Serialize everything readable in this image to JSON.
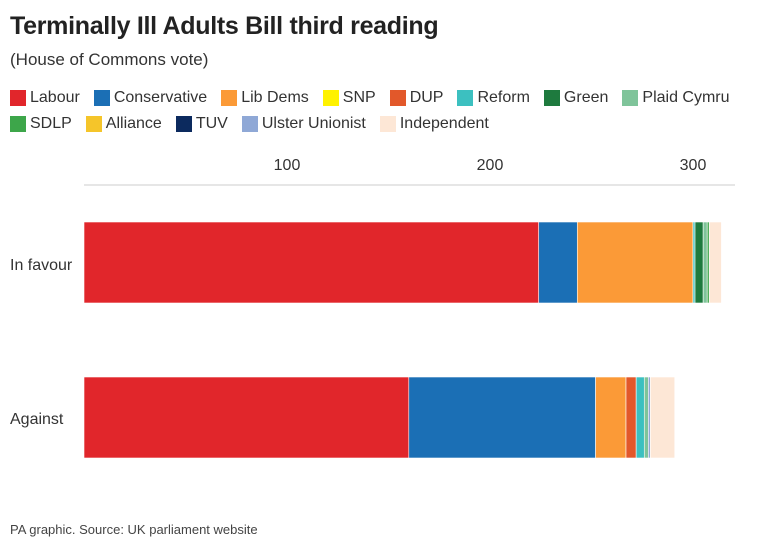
{
  "title": "Terminally Ill Adults Bill third reading",
  "subtitle": "(House of Commons vote)",
  "source": "PA graphic. Source: UK parliament website",
  "chart_data": {
    "type": "bar",
    "orientation": "horizontal",
    "stacked": true,
    "categories": [
      "In favour",
      "Against"
    ],
    "xlim": [
      0,
      320
    ],
    "xticks": [
      100,
      200,
      300
    ],
    "grid": false,
    "legend_position": "top",
    "series": [
      {
        "name": "Labour",
        "color": "#e1262b",
        "values": [
          224,
          160
        ]
      },
      {
        "name": "Conservative",
        "color": "#1b6fb5",
        "values": [
          19,
          92
        ]
      },
      {
        "name": "Lib Dems",
        "color": "#fb9a37",
        "values": [
          57,
          15
        ]
      },
      {
        "name": "SNP",
        "color": "#fff200",
        "values": [
          0,
          0
        ]
      },
      {
        "name": "DUP",
        "color": "#e2582a",
        "values": [
          0,
          5
        ]
      },
      {
        "name": "Reform",
        "color": "#3cc0c0",
        "values": [
          1,
          4
        ]
      },
      {
        "name": "Green",
        "color": "#1e7a3e",
        "values": [
          4,
          0
        ]
      },
      {
        "name": "Plaid Cymru",
        "color": "#7fc49a",
        "values": [
          2,
          2
        ]
      },
      {
        "name": "SDLP",
        "color": "#3da64a",
        "values": [
          1,
          0
        ]
      },
      {
        "name": "Alliance",
        "color": "#f5c52a",
        "values": [
          0,
          0
        ]
      },
      {
        "name": "TUV",
        "color": "#0c2a5e",
        "values": [
          0,
          0
        ]
      },
      {
        "name": "Ulster Unionist",
        "color": "#8fa8d6",
        "values": [
          0,
          1
        ]
      },
      {
        "name": "Independent",
        "color": "#fde7d6",
        "values": [
          6,
          12
        ]
      }
    ]
  }
}
